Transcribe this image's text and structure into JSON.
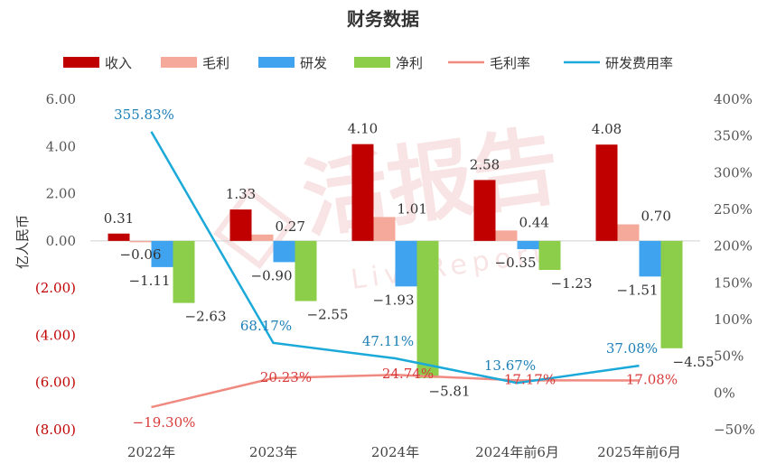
{
  "chart_data": {
    "type": "bar",
    "title": "财务数据",
    "ylabel": "亿人民币",
    "categories": [
      "2022年",
      "2023年",
      "2024年",
      "2024年前6月",
      "2025年前6月"
    ],
    "series": [
      {
        "name": "收入",
        "kind": "bar",
        "color": "#c00000",
        "values": [
          0.31,
          1.33,
          4.1,
          2.58,
          4.08
        ]
      },
      {
        "name": "毛利",
        "kind": "bar",
        "color": "#f4a99b",
        "values": [
          -0.06,
          0.27,
          1.01,
          0.44,
          0.7
        ]
      },
      {
        "name": "研发",
        "kind": "bar",
        "color": "#3fa3f0",
        "values": [
          -1.11,
          -0.9,
          -1.93,
          -0.35,
          -1.51
        ]
      },
      {
        "name": "净利",
        "kind": "bar",
        "color": "#8ccd4a",
        "values": [
          -2.63,
          -2.55,
          -5.81,
          -1.23,
          -4.55
        ]
      },
      {
        "name": "毛利率",
        "kind": "line",
        "color": "#f08a80",
        "values": [
          -19.3,
          20.23,
          24.74,
          17.17,
          17.08
        ]
      },
      {
        "name": "研发费用率",
        "kind": "line",
        "color": "#1aa9d9",
        "values": [
          355.83,
          68.17,
          47.11,
          13.67,
          37.08
        ]
      }
    ],
    "bar_labels": [
      [
        "0.31",
        "1.33",
        "4.10",
        "2.58",
        "4.08"
      ],
      [
        "−0.06",
        "0.27",
        "1.01",
        "0.44",
        "0.70"
      ],
      [
        "−1.11",
        "−0.90",
        "−1.93",
        "−0.35",
        "−1.51"
      ],
      [
        "−2.63",
        "−2.55",
        "−5.81",
        "−1.23",
        "−4.55"
      ]
    ],
    "rate_labels": {
      "毛利率": [
        "−19.30%",
        "20.23%",
        "24.74%",
        "17.17%",
        "17.08%"
      ],
      "研发费用率": [
        "355.83%",
        "68.17%",
        "47.11%",
        "13.67%",
        "37.08%"
      ]
    },
    "y_left": {
      "min": -8,
      "max": 6,
      "ticks": [
        6,
        4,
        2,
        0,
        -2,
        -4,
        -6,
        -8
      ],
      "tick_labels": [
        "6.00",
        "4.00",
        "2.00",
        "0.00",
        "(2.00)",
        "(4.00)",
        "(6.00)",
        "(8.00)"
      ],
      "negative_color": "#c00000"
    },
    "y_right": {
      "min": -50,
      "max": 400,
      "ticks": [
        400,
        350,
        300,
        250,
        200,
        150,
        100,
        50,
        0,
        -50
      ],
      "tick_labels": [
        "400%",
        "350%",
        "300%",
        "250%",
        "200%",
        "150%",
        "100%",
        "50%",
        "0%",
        "−50%"
      ]
    },
    "legend_position": "top",
    "grid": false,
    "watermark": "活报告 LiveReport"
  }
}
